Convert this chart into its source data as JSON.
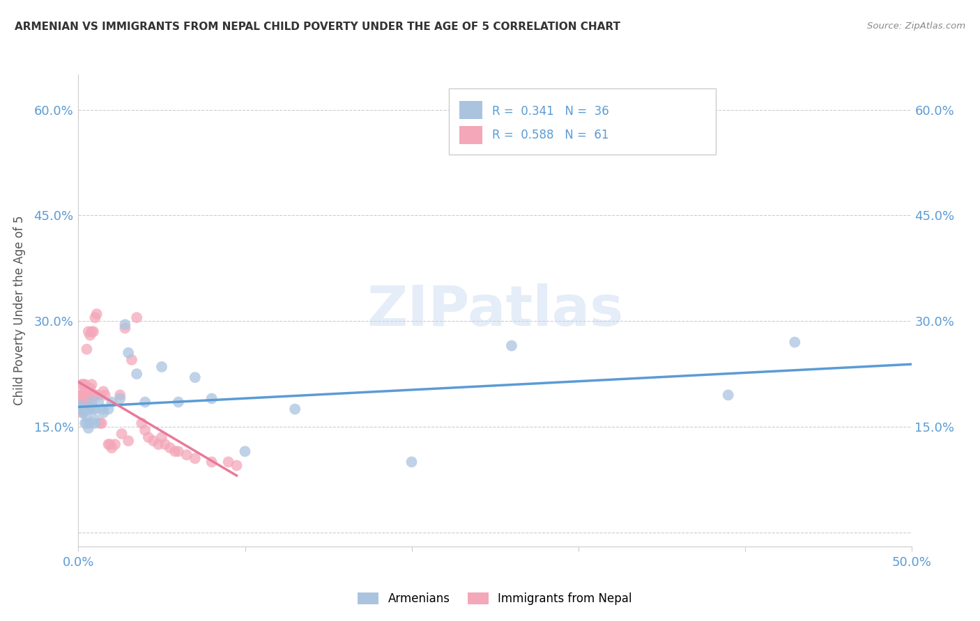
{
  "title": "ARMENIAN VS IMMIGRANTS FROM NEPAL CHILD POVERTY UNDER THE AGE OF 5 CORRELATION CHART",
  "source": "Source: ZipAtlas.com",
  "ylabel": "Child Poverty Under the Age of 5",
  "xlim": [
    0.0,
    0.5
  ],
  "ylim": [
    -0.02,
    0.65
  ],
  "color_armenian": "#aac4e0",
  "color_nepal": "#f4a7b9",
  "color_line_armenian": "#5b9bd5",
  "color_line_nepal": "#e8799a",
  "background_color": "#ffffff",
  "r_armenian": "0.341",
  "n_armenian": "36",
  "r_nepal": "0.588",
  "n_nepal": "61",
  "armenian_x": [
    0.001,
    0.002,
    0.003,
    0.004,
    0.004,
    0.005,
    0.005,
    0.006,
    0.006,
    0.007,
    0.007,
    0.008,
    0.009,
    0.01,
    0.01,
    0.01,
    0.012,
    0.015,
    0.015,
    0.018,
    0.02,
    0.025,
    0.028,
    0.03,
    0.035,
    0.04,
    0.05,
    0.06,
    0.07,
    0.08,
    0.1,
    0.13,
    0.2,
    0.26,
    0.39,
    0.43
  ],
  "armenian_y": [
    0.18,
    0.175,
    0.17,
    0.155,
    0.175,
    0.155,
    0.165,
    0.148,
    0.175,
    0.155,
    0.175,
    0.185,
    0.175,
    0.16,
    0.155,
    0.175,
    0.185,
    0.175,
    0.17,
    0.175,
    0.185,
    0.19,
    0.295,
    0.255,
    0.225,
    0.185,
    0.235,
    0.185,
    0.22,
    0.19,
    0.115,
    0.175,
    0.1,
    0.265,
    0.195,
    0.27
  ],
  "nepal_x": [
    0.001,
    0.001,
    0.001,
    0.002,
    0.002,
    0.002,
    0.002,
    0.002,
    0.003,
    0.003,
    0.003,
    0.003,
    0.004,
    0.004,
    0.004,
    0.005,
    0.005,
    0.005,
    0.006,
    0.006,
    0.006,
    0.007,
    0.007,
    0.007,
    0.008,
    0.008,
    0.009,
    0.009,
    0.01,
    0.01,
    0.011,
    0.012,
    0.013,
    0.014,
    0.015,
    0.016,
    0.018,
    0.019,
    0.02,
    0.022,
    0.025,
    0.026,
    0.028,
    0.03,
    0.032,
    0.035,
    0.038,
    0.04,
    0.042,
    0.045,
    0.048,
    0.05,
    0.052,
    0.055,
    0.058,
    0.06,
    0.065,
    0.07,
    0.08,
    0.09,
    0.095
  ],
  "nepal_y": [
    0.195,
    0.175,
    0.185,
    0.175,
    0.185,
    0.195,
    0.21,
    0.17,
    0.175,
    0.185,
    0.195,
    0.21,
    0.175,
    0.195,
    0.21,
    0.185,
    0.195,
    0.26,
    0.185,
    0.195,
    0.285,
    0.195,
    0.205,
    0.28,
    0.21,
    0.285,
    0.195,
    0.285,
    0.195,
    0.305,
    0.31,
    0.195,
    0.155,
    0.155,
    0.2,
    0.195,
    0.125,
    0.125,
    0.12,
    0.125,
    0.195,
    0.14,
    0.29,
    0.13,
    0.245,
    0.305,
    0.155,
    0.145,
    0.135,
    0.13,
    0.125,
    0.135,
    0.125,
    0.12,
    0.115,
    0.115,
    0.11,
    0.105,
    0.1,
    0.1,
    0.095
  ]
}
